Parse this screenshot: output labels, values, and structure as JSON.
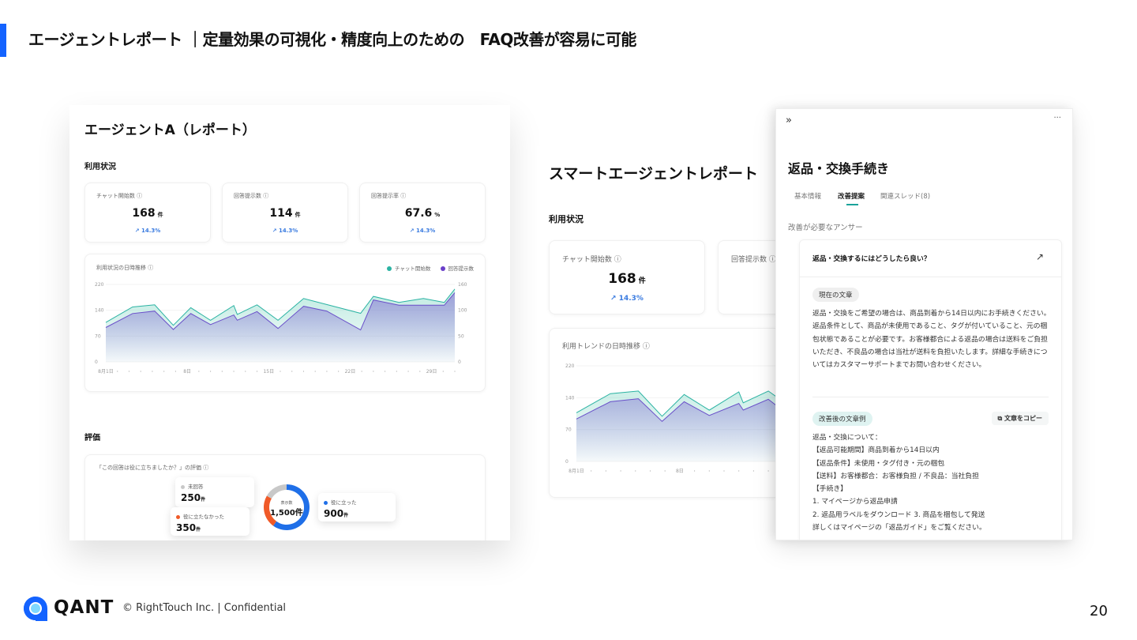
{
  "slide": {
    "title": "エージェントレポート ｜定量効果の可視化・精度向上のための　FAQ改善が容易に可能",
    "footer": {
      "brand": "QANT",
      "copyright": "© RightTouch Inc.  |   Confidential"
    },
    "page_number": "20",
    "accent_color": "#1463ff"
  },
  "left_report": {
    "title": "エージェントA（レポート）",
    "usage_heading": "利用状況",
    "kpis": [
      {
        "label": "チャット開始数 ⓘ",
        "value": "168",
        "unit": "件",
        "delta": "14.3%"
      },
      {
        "label": "回答提示数 ⓘ",
        "value": "114",
        "unit": "件",
        "delta": "14.3%"
      },
      {
        "label": "回答提示率 ⓘ",
        "value": "67.6",
        "unit": "%",
        "delta": "14.3%"
      }
    ],
    "chart_title": "利用状況の日時推移 ⓘ",
    "legend": [
      "チャット開始数",
      "回答提示数"
    ],
    "rating_heading": "評価",
    "rating_title": "「この回答は役に立ちましたか？」の評価 ⓘ",
    "donut_center_label": "表示数",
    "donut_center_value": "1,500件",
    "rating_items": [
      {
        "label": "未回答",
        "value": "250",
        "unit": "件",
        "color": "#c8c8c8"
      },
      {
        "label": "役に立たなかった",
        "value": "350",
        "unit": "件",
        "color": "#f05a28"
      },
      {
        "label": "役に立った",
        "value": "900",
        "unit": "件",
        "color": "#1f6fe8"
      }
    ]
  },
  "mid_report": {
    "title": "スマートエージェントレポート",
    "usage_heading": "利用状況",
    "kpi": {
      "label": "チャット開始数 ⓘ",
      "value": "168",
      "unit": "件",
      "delta": "14.3%"
    },
    "kpi2_label": "回答提示数 ⓘ",
    "chart_title": "利用トレンドの日時推移 ⓘ",
    "y_ticks": [
      "220",
      "140",
      "70",
      "0"
    ],
    "x_ticks": [
      "8月1日",
      "8日",
      "1"
    ]
  },
  "detail_panel": {
    "title": "返品・交換手続き",
    "tabs": [
      "基本情報",
      "改善提案",
      "関連スレッド(8)"
    ],
    "active_tab": 1,
    "section_label": "改善が必要なアンサー",
    "question": "返品・交換するにはどうしたら良い？",
    "current_label": "現在の文章",
    "current_text": "返品・交換をご希望の場合は、商品到着から14日以内にお手続きください。返品条件として、商品が未使用であること、タグが付いていること、元の梱包状態であることが必要です。お客様都合による返品の場合は送料をご負担いただき、不良品の場合は当社が送料を負担いたします。詳細な手続きについてはカスタマーサポートまでお問い合わせください。",
    "improved_label": "改善後の文章例",
    "copy_button": "文章をコピー",
    "improved_lines": [
      "返品・交換について：",
      "【返品可能期間】商品到着から14日以内",
      "【返品条件】未使用・タグ付き・元の梱包",
      "【送料】お客様都合：お客様負担 / 不良品：当社負担",
      "【手続き】",
      "1. マイページから返品申請",
      "2. 返品用ラベルをダウンロード 3. 商品を梱包して発送",
      "詳しくはマイページの「返品ガイド」をご覧ください。"
    ],
    "accent_color": "#1aa39a"
  },
  "chart_data": [
    {
      "type": "area",
      "title": "利用状況の日時推移",
      "x_ticks": [
        "8月1日",
        "8日",
        "15日",
        "22日",
        "29日"
      ],
      "xlim": [
        1,
        31
      ],
      "ylim_left": [
        0,
        220
      ],
      "y_ticks_left": [
        "220",
        "140",
        "70",
        "0"
      ],
      "ylim_right": [
        0,
        160
      ],
      "y_ticks_right": [
        "160",
        "100",
        "50",
        "0"
      ],
      "legend_position": "top-right",
      "series": [
        {
          "name": "チャット開始数",
          "axis": "left",
          "color": "#2bb3a3",
          "x": [
            1,
            3.3,
            5.2,
            6.8,
            8.3,
            10,
            12,
            12.3,
            14,
            15.8,
            18,
            22.9,
            24,
            26.2,
            28.3,
            30.1,
            31
          ],
          "y": [
            112,
            156,
            162,
            104,
            154,
            118,
            160,
            135,
            162,
            118,
            180,
            138,
            186,
            169,
            180,
            169,
            207
          ]
        },
        {
          "name": "回答提示数",
          "axis": "right",
          "color": "#6a4fc9",
          "x": [
            1,
            3.3,
            5.2,
            6.8,
            8.3,
            10,
            12,
            12.3,
            14,
            15.8,
            18,
            20,
            22.9,
            24,
            26.2,
            30.1,
            31
          ],
          "y": [
            71,
            100,
            105,
            67,
            100,
            77,
            97,
            86,
            104,
            69,
            115,
            105,
            66,
            128,
            117,
            117,
            143
          ]
        }
      ]
    },
    {
      "type": "pie",
      "categories": [
        "役に立った",
        "役に立たなかった",
        "未回答"
      ],
      "values": [
        900,
        350,
        250
      ],
      "colors": [
        "#1f6fe8",
        "#f05a28",
        "#c8c8c8"
      ]
    }
  ]
}
